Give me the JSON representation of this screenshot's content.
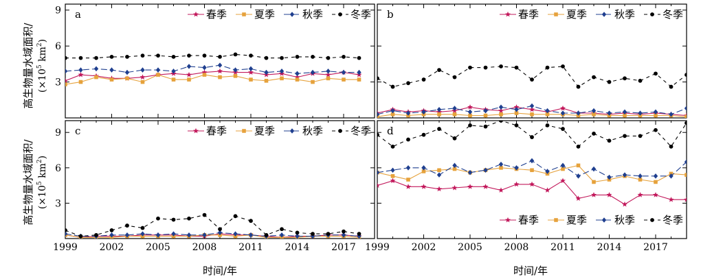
{
  "figure": {
    "ylabel": "高生物量水域面积/",
    "ylabel_unit_prefix": "(×10",
    "ylabel_unit_exp": "5",
    "ylabel_unit_mid": " km",
    "ylabel_unit_exp2": "2",
    "ylabel_unit_suffix": ")",
    "xlabel": "时间/年",
    "colors": {
      "spring": "#c2185b",
      "summer": "#e6a23c",
      "autumn": "#1f3f8f",
      "winter": "#000000"
    },
    "series_names": [
      "春季",
      "夏季",
      "秋季",
      "冬季"
    ]
  },
  "chart_data": [
    {
      "panel": "a",
      "type": "line",
      "x": [
        1999,
        2000,
        2001,
        2002,
        2003,
        2004,
        2005,
        2006,
        2007,
        2008,
        2009,
        2010,
        2011,
        2012,
        2013,
        2014,
        2015,
        2016,
        2017,
        2018
      ],
      "xticks": [
        "1999",
        "2002",
        "2005",
        "2008",
        "2011",
        "2014",
        "2017"
      ],
      "ylim": [
        0,
        9.5
      ],
      "yticks": [
        "3",
        "6",
        "9"
      ],
      "legend": "top-right",
      "series": [
        {
          "name": "春季",
          "values": [
            3.1,
            3.6,
            3.5,
            3.3,
            3.3,
            3.4,
            3.6,
            3.7,
            3.6,
            3.8,
            3.9,
            3.8,
            3.8,
            3.6,
            3.7,
            3.4,
            3.7,
            3.6,
            3.8,
            3.6
          ]
        },
        {
          "name": "夏季",
          "values": [
            2.8,
            3.0,
            3.4,
            3.2,
            3.3,
            3.0,
            3.6,
            3.2,
            3.2,
            3.6,
            3.4,
            3.5,
            3.2,
            3.1,
            3.3,
            3.2,
            3.0,
            3.3,
            3.2,
            3.2
          ]
        },
        {
          "name": "秋季",
          "values": [
            3.9,
            4.0,
            4.1,
            4.0,
            3.8,
            4.0,
            4.0,
            3.9,
            4.3,
            4.2,
            4.4,
            4.0,
            4.1,
            3.8,
            3.9,
            3.7,
            3.8,
            3.9,
            3.8,
            3.8
          ]
        },
        {
          "name": "冬季",
          "values": [
            5.0,
            5.0,
            5.0,
            5.1,
            5.1,
            5.2,
            5.2,
            5.1,
            5.2,
            5.2,
            5.1,
            5.3,
            5.2,
            5.0,
            5.0,
            5.1,
            5.1,
            5.0,
            5.1,
            5.0
          ]
        }
      ]
    },
    {
      "panel": "b",
      "type": "line",
      "x": [
        1999,
        2000,
        2001,
        2002,
        2003,
        2004,
        2005,
        2006,
        2007,
        2008,
        2009,
        2010,
        2011,
        2012,
        2013,
        2014,
        2015,
        2016,
        2017,
        2018,
        2019
      ],
      "xticks": [
        "1999",
        "2002",
        "2005",
        "2008",
        "2011",
        "2014",
        "2017"
      ],
      "ylim": [
        0,
        9.5
      ],
      "yticks": [
        "3",
        "6",
        "9"
      ],
      "legend": "top-right",
      "series": [
        {
          "name": "春季",
          "values": [
            0.4,
            0.7,
            0.5,
            0.6,
            0.5,
            0.6,
            0.9,
            0.7,
            0.6,
            0.9,
            0.7,
            0.5,
            0.8,
            0.4,
            0.4,
            0.3,
            0.4,
            0.3,
            0.4,
            0.3,
            0.2
          ]
        },
        {
          "name": "夏季",
          "values": [
            0.1,
            0.3,
            0.2,
            0.3,
            0.3,
            0.3,
            0.2,
            0.2,
            0.3,
            0.4,
            0.3,
            0.3,
            0.3,
            0.2,
            0.3,
            0.2,
            0.2,
            0.2,
            0.2,
            0.2,
            0.1
          ]
        },
        {
          "name": "秋季",
          "values": [
            0.3,
            0.6,
            0.4,
            0.5,
            0.7,
            0.8,
            0.5,
            0.6,
            0.9,
            0.7,
            1.0,
            0.6,
            0.4,
            0.4,
            0.6,
            0.4,
            0.5,
            0.4,
            0.5,
            0.3,
            0.8
          ]
        },
        {
          "name": "冬季",
          "values": [
            3.3,
            2.6,
            2.9,
            3.2,
            4.0,
            3.4,
            4.2,
            4.2,
            4.3,
            4.2,
            3.2,
            4.2,
            4.3,
            2.6,
            3.4,
            3.0,
            3.3,
            3.1,
            3.7,
            2.6,
            3.6
          ]
        }
      ]
    },
    {
      "panel": "c",
      "type": "line",
      "x": [
        1999,
        2000,
        2001,
        2002,
        2003,
        2004,
        2005,
        2006,
        2007,
        2008,
        2009,
        2010,
        2011,
        2012,
        2013,
        2014,
        2015,
        2016,
        2017,
        2018
      ],
      "xticks": [
        "1999",
        "2002",
        "2005",
        "2008",
        "2011",
        "2014",
        "2017"
      ],
      "ylim": [
        0,
        10
      ],
      "yticks": [
        "3",
        "6",
        "9"
      ],
      "legend": "top-right",
      "series": [
        {
          "name": "春季",
          "values": [
            0.3,
            0.1,
            0.2,
            0.2,
            0.2,
            0.3,
            0.3,
            0.3,
            0.2,
            0.2,
            0.4,
            0.3,
            0.3,
            0.2,
            0.1,
            0.2,
            0.2,
            0.3,
            0.3,
            0.2
          ]
        },
        {
          "name": "夏季",
          "values": [
            0.3,
            0.1,
            0.1,
            0.1,
            0.2,
            0.2,
            0.2,
            0.2,
            0.2,
            0.3,
            0.3,
            0.2,
            0.3,
            0.1,
            0.1,
            0.1,
            0.2,
            0.2,
            0.2,
            0.1
          ]
        },
        {
          "name": "秋季",
          "values": [
            0.4,
            0.2,
            0.2,
            0.3,
            0.3,
            0.4,
            0.3,
            0.4,
            0.3,
            0.3,
            0.5,
            0.4,
            0.3,
            0.2,
            0.3,
            0.2,
            0.2,
            0.3,
            0.3,
            0.2
          ]
        },
        {
          "name": "冬季",
          "values": [
            0.7,
            0.2,
            0.3,
            0.7,
            1.1,
            0.9,
            1.7,
            1.6,
            1.7,
            2.0,
            0.8,
            1.9,
            1.5,
            0.3,
            0.8,
            0.5,
            0.4,
            0.4,
            0.6,
            0.4
          ]
        }
      ]
    },
    {
      "panel": "d",
      "type": "line",
      "x": [
        1999,
        2000,
        2001,
        2002,
        2003,
        2004,
        2005,
        2006,
        2007,
        2008,
        2009,
        2010,
        2011,
        2012,
        2013,
        2014,
        2015,
        2016,
        2017,
        2018,
        2019
      ],
      "xticks": [
        "1999",
        "2002",
        "2005",
        "2008",
        "2011",
        "2014",
        "2017"
      ],
      "ylim": [
        0,
        10
      ],
      "yticks": [
        "3",
        "6",
        "9"
      ],
      "legend": "bottom-right",
      "series": [
        {
          "name": "春季",
          "values": [
            4.5,
            4.9,
            4.4,
            4.4,
            4.2,
            4.3,
            4.4,
            4.4,
            4.1,
            4.6,
            4.6,
            4.1,
            4.9,
            3.4,
            3.7,
            3.7,
            2.9,
            3.7,
            3.7,
            3.3,
            3.3
          ]
        },
        {
          "name": "夏季",
          "values": [
            5.6,
            5.3,
            5.0,
            5.7,
            5.8,
            5.9,
            5.6,
            5.8,
            6.0,
            5.9,
            5.8,
            5.5,
            5.9,
            6.2,
            4.8,
            5.0,
            5.3,
            5.0,
            4.8,
            5.5,
            5.4
          ]
        },
        {
          "name": "秋季",
          "values": [
            5.6,
            5.8,
            6.0,
            6.0,
            5.4,
            6.2,
            5.6,
            5.8,
            6.3,
            6.0,
            6.6,
            5.7,
            6.2,
            5.3,
            5.9,
            5.2,
            5.4,
            5.3,
            5.3,
            5.3,
            6.5
          ]
        },
        {
          "name": "冬季",
          "values": [
            8.8,
            7.8,
            8.4,
            8.8,
            9.3,
            8.5,
            9.6,
            9.5,
            10.0,
            9.6,
            8.6,
            9.6,
            9.3,
            7.8,
            8.9,
            8.3,
            8.7,
            8.7,
            9.2,
            7.8,
            9.8
          ]
        }
      ]
    }
  ]
}
